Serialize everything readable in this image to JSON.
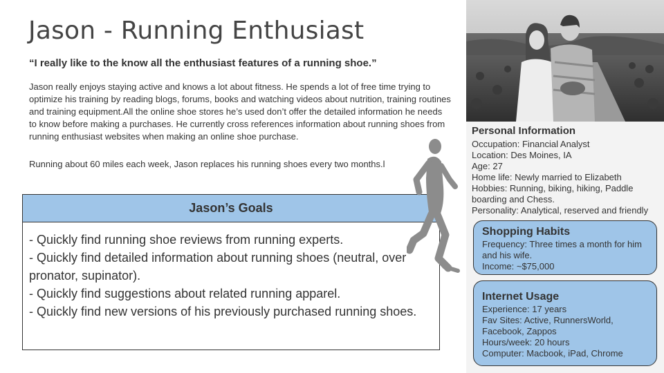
{
  "persona": {
    "title": "Jason - Running Enthusiast",
    "quote": "“I really like to the know all the enthusiast features of a running shoe.”",
    "bio": "Jason really enjoys staying active and knows a lot about fitness. He spends a lot of free time trying to optimize his training by reading blogs, forums, books and watching videos about nutrition, training routines and training equipment.All the online shoe stores he’s used don’t offer the detailed information he needs to know before making a purchases. He currently cross references information about running shoes from running enthusiast websites when making an online shoe purchase.",
    "bio_extra": "Running about 60 miles each week, Jason replaces his running shoes every two months.l"
  },
  "goals": {
    "heading": "Jason’s Goals",
    "items": [
      "- Quickly find running shoe reviews from running experts.",
      "- Quickly find detailed information about running shoes (neutral, over pronator, supinator).",
      "- Quickly find suggestions about related running apparel.",
      "- Quickly find new versions of his previously purchased running shoes."
    ]
  },
  "personal_info": {
    "heading": "Personal Information",
    "lines": [
      "Occupation: Financial Analyst",
      "Location: Des Moines, IA",
      "Age: 27",
      "Home life: Newly married to Elizabeth",
      "Hobbies: Running, biking, hiking, Paddle boarding and Chess.",
      "Personality: Analytical, reserved and friendly"
    ]
  },
  "shopping_habits": {
    "heading": "Shopping Habits",
    "lines": [
      "Frequency: Three times a month for him and his wife.",
      "Income: ~$75,000"
    ]
  },
  "internet_usage": {
    "heading": "Internet Usage",
    "lines": [
      "Experience: 17 years",
      "Fav Sites: Active, RunnersWorld, Facebook, Zappos",
      "Hours/week: 20 hours",
      "Computer: Macbook, iPad, Chrome"
    ]
  },
  "colors": {
    "accent_blue": "#9fc5e8",
    "runner_gray": "#8c8c8c"
  },
  "icons": {
    "runner": "runner-silhouette-icon",
    "photo": "couple-photo"
  }
}
